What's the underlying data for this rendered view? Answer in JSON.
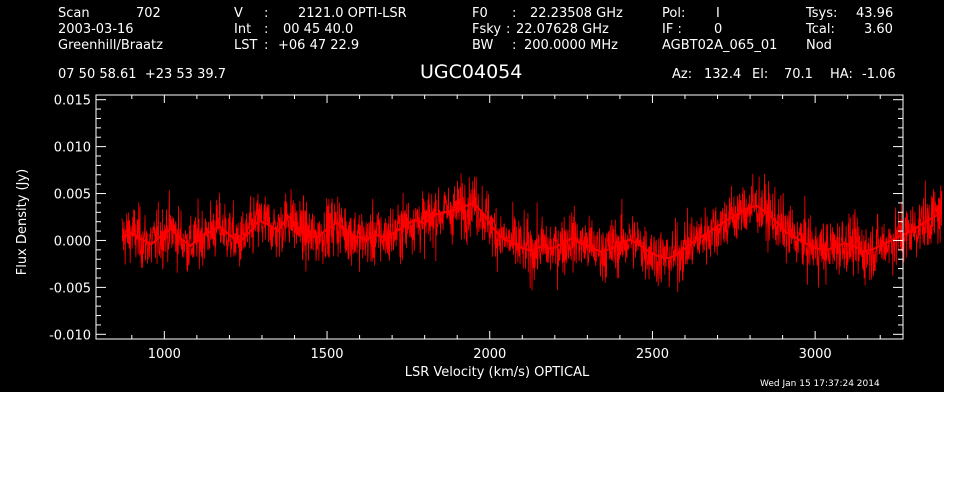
{
  "header": {
    "scan_label": "Scan",
    "scan_value": "702",
    "date": "2003-03-16",
    "observers": "Greenhill/Braatz",
    "v_label": "V",
    "v_value": "2121.0 OPTI-LSR",
    "int_label": "Int",
    "int_value": "00 45 40.0",
    "lst_label": "LST",
    "lst_value": "+06 47 22.9",
    "f0_label": "F0",
    "f0_value": "22.23508 GHz",
    "fsky_label": "Fsky",
    "fsky_value": "22.07628 GHz",
    "bw_label": "BW",
    "bw_value": "200.0000 MHz",
    "pol_label": "Pol:",
    "pol_value": "I",
    "if_label": "IF :",
    "if_value": "0",
    "project": "AGBT02A_065_01",
    "tsys_label": "Tsys:",
    "tsys_value": "43.96",
    "tcal_label": "Tcal:",
    "tcal_value": "3.60",
    "mode": "Nod",
    "coords": "07 50 58.61  +23 53 39.7",
    "source": "UGC04054",
    "az_label": "Az:",
    "az_value": "132.4",
    "el_label": "El:",
    "el_value": "70.1",
    "ha_label": "HA:",
    "ha_value": "-1.06",
    "timestamp": "Wed Jan 15 17:37:24 2014"
  },
  "chart_data": {
    "type": "line",
    "xlabel": "LSR Velocity (km/s) OPTICAL",
    "ylabel": "Flux Density (Jy)",
    "xlim": [
      790,
      3270
    ],
    "ylim": [
      -0.0105,
      0.0155
    ],
    "x_ticks": [
      1000,
      1500,
      2000,
      2500,
      3000
    ],
    "x_tick_labels": [
      "1000",
      "1500",
      "2000",
      "2500",
      "3000"
    ],
    "y_ticks": [
      -0.01,
      -0.005,
      0.0,
      0.005,
      0.01,
      0.015
    ],
    "y_tick_labels": [
      "-0.010",
      "-0.005",
      "0.000",
      "0.005",
      "0.010",
      "0.015"
    ],
    "grid": false,
    "series": [
      {
        "color": "#ff0000",
        "x": [
          870,
          900,
          930,
          960,
          990,
          1020,
          1050,
          1080,
          1110,
          1140,
          1170,
          1200,
          1230,
          1260,
          1290,
          1320,
          1350,
          1380,
          1410,
          1440,
          1470,
          1500,
          1530,
          1560,
          1590,
          1620,
          1650,
          1680,
          1710,
          1740,
          1770,
          1800,
          1830,
          1860,
          1890,
          1920,
          1950,
          1980,
          2010,
          2040,
          2070,
          2100,
          2130,
          2160,
          2190,
          2220,
          2250,
          2280,
          2310,
          2340,
          2370,
          2400,
          2430,
          2460,
          2490,
          2520,
          2550,
          2580,
          2610,
          2640,
          2670,
          2700,
          2730,
          2760,
          2790,
          2820,
          2850,
          2880,
          2910,
          2940,
          2970,
          3000,
          3030,
          3060,
          3090,
          3120,
          3150,
          3180,
          3210,
          3240,
          3270,
          3300,
          3330,
          3360,
          3390
        ],
        "values": [
          0.0003,
          0.0008,
          0.0001,
          -0.0004,
          0.0005,
          0.0012,
          0.0002,
          -0.0006,
          0.0004,
          0.0009,
          0.0015,
          0.0006,
          -0.0002,
          0.0008,
          0.0021,
          0.0017,
          0.001,
          0.0026,
          0.0014,
          0.0005,
          0.0003,
          0.0012,
          0.0019,
          0.0009,
          0.0004,
          0.0001,
          0.0006,
          0.0003,
          0.0009,
          0.0016,
          0.0022,
          0.0018,
          0.0027,
          0.003,
          0.0032,
          0.0036,
          0.004,
          0.0029,
          0.0013,
          0.0002,
          -0.0003,
          -0.0008,
          -0.0011,
          -0.0006,
          -0.0009,
          -0.0004,
          0.0002,
          -0.0003,
          -0.0007,
          -0.0012,
          -0.0009,
          -0.0004,
          0.0001,
          -0.0005,
          -0.0012,
          -0.0017,
          -0.0019,
          -0.0014,
          -0.0006,
          0.0002,
          0.0008,
          0.0015,
          0.0022,
          0.0028,
          0.0034,
          0.0037,
          0.003,
          0.002,
          0.0009,
          0.0003,
          -0.0003,
          -0.0008,
          -0.0011,
          -0.0007,
          -0.0003,
          -0.0006,
          -0.0012,
          -0.0009,
          -0.0004,
          0.0001,
          0.0006,
          0.0011,
          0.0018,
          0.0024,
          0.003
        ]
      }
    ]
  }
}
